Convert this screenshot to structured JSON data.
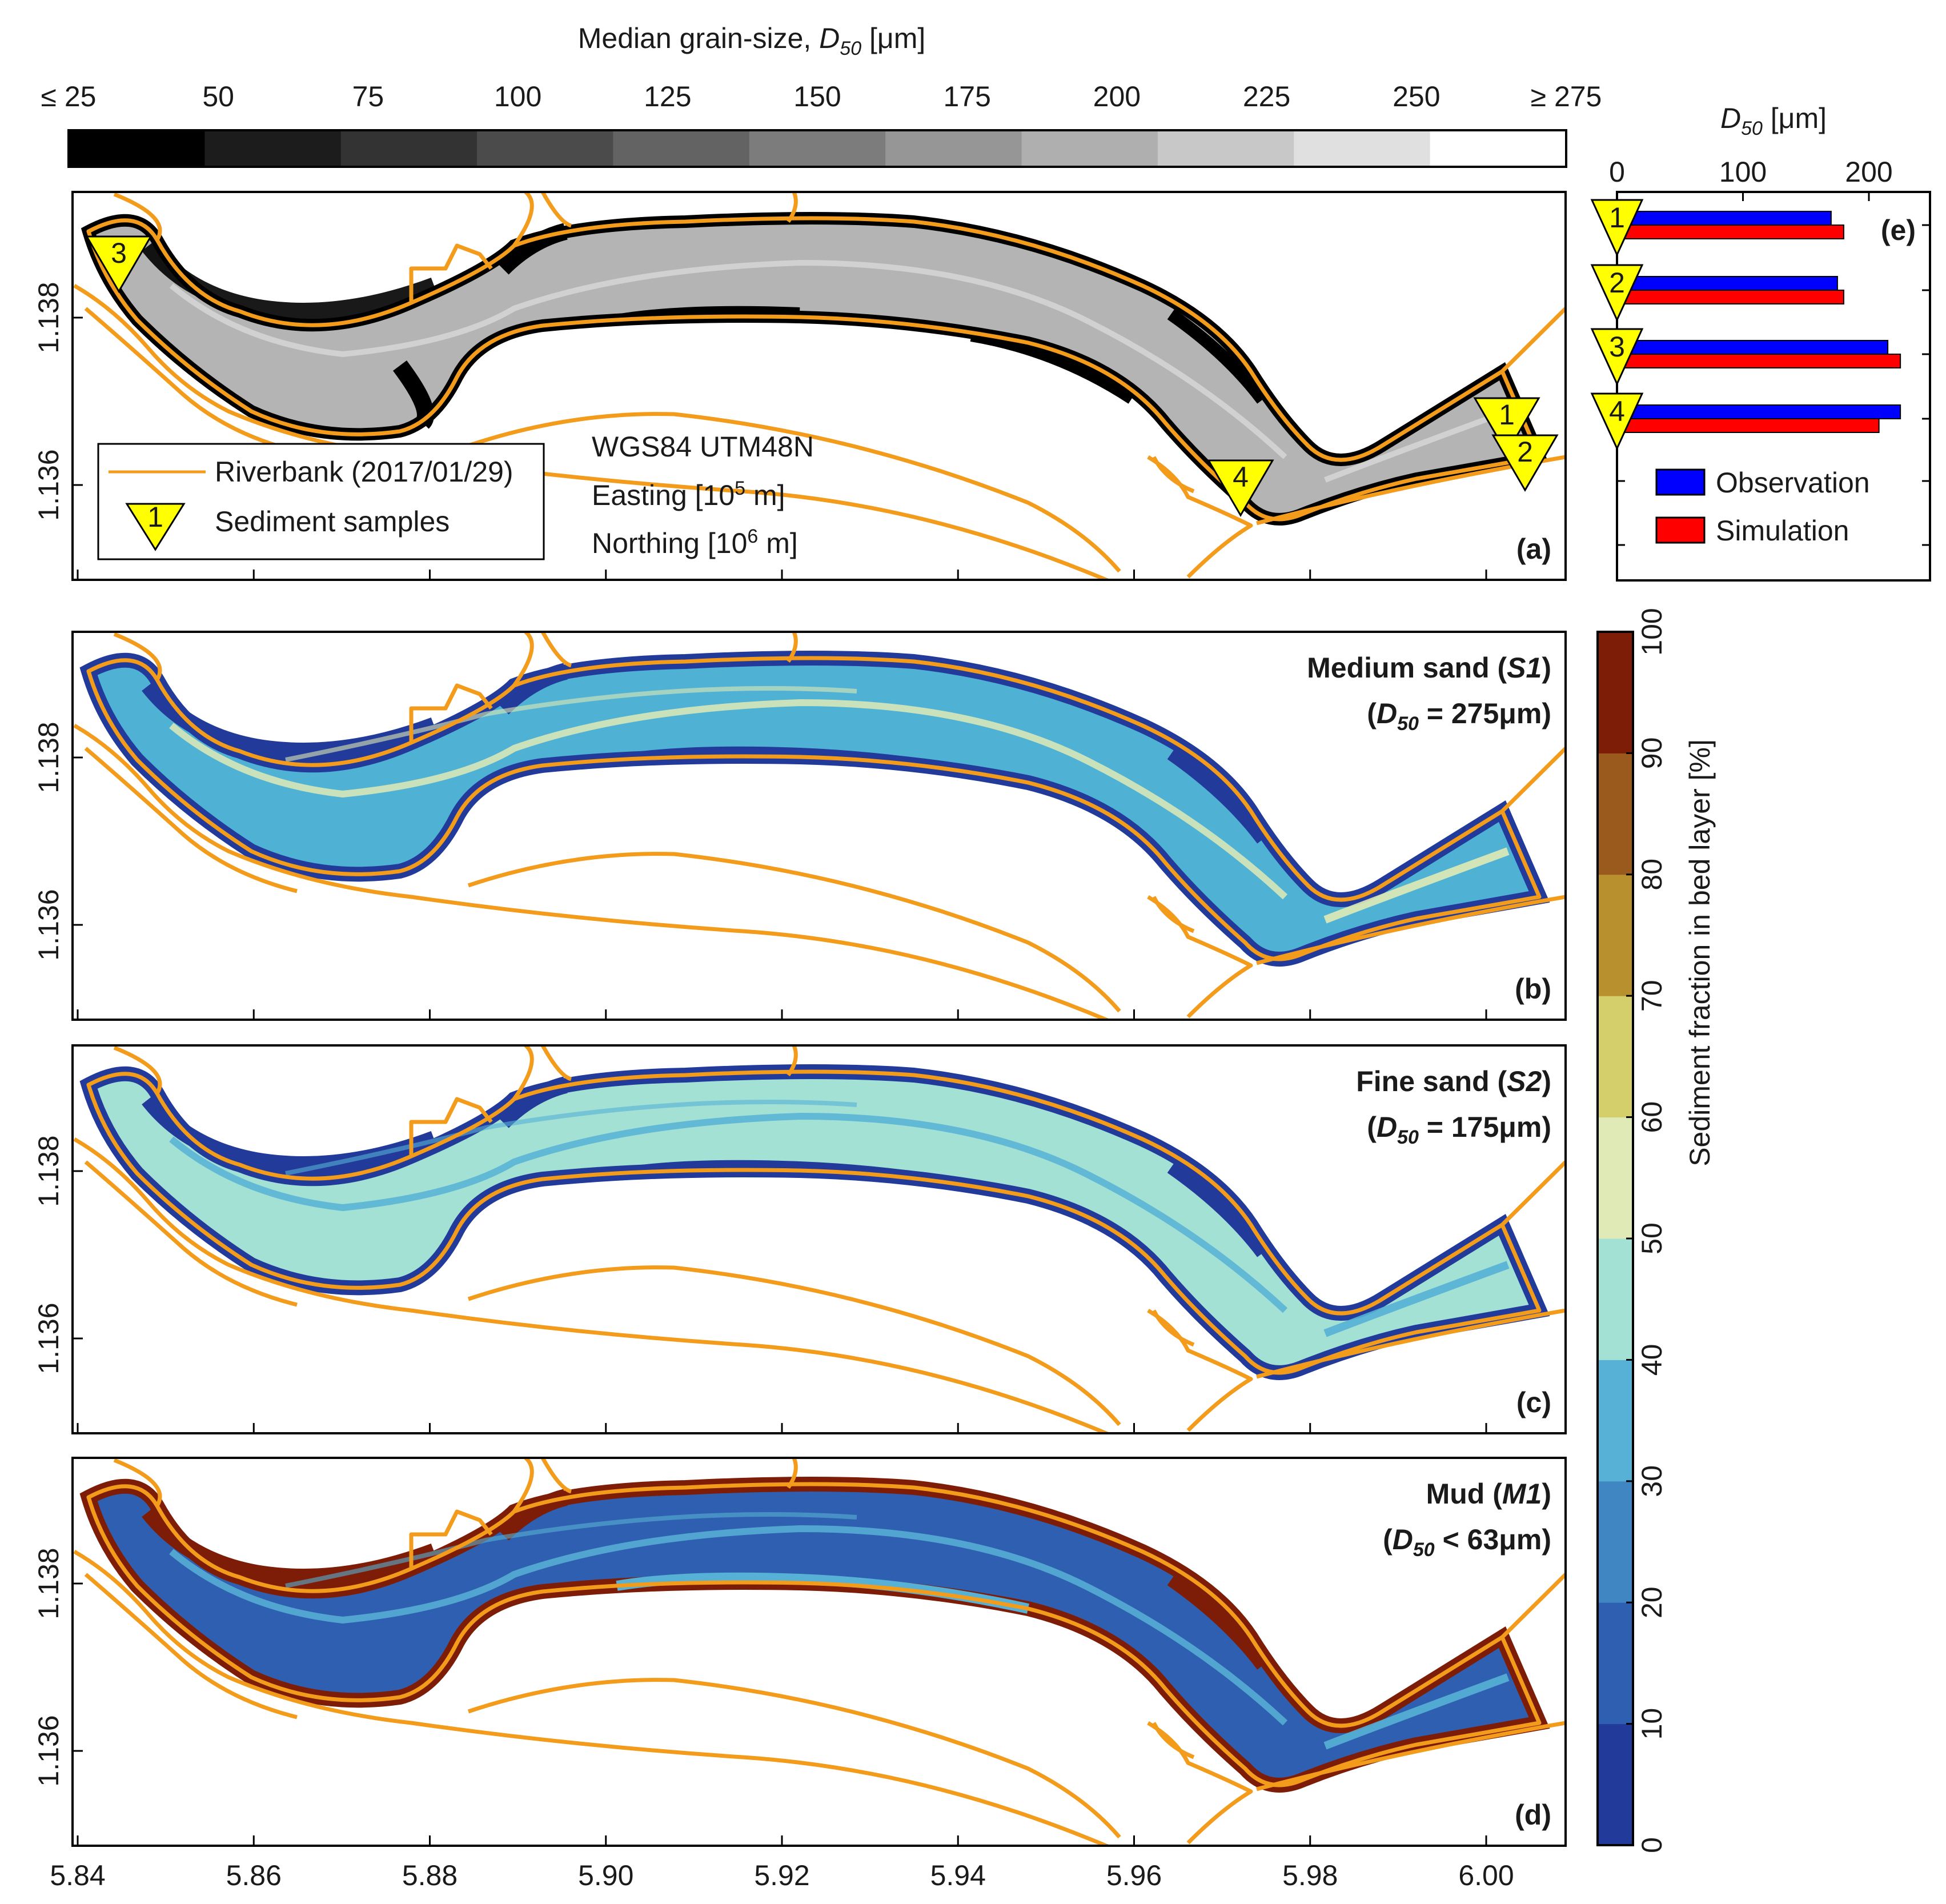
{
  "colorbar_top": {
    "title": "Median grain-size, D50 [μm]",
    "title_main": "Median grain-size, ",
    "title_sym": "D",
    "title_sub": "50",
    "title_unit": " [μm]",
    "tick_labels": [
      "≤ 25",
      "50",
      "75",
      "100",
      "125",
      "150",
      "175",
      "200",
      "225",
      "250",
      "≥ 275"
    ],
    "colors": [
      "#000000",
      "#1c1c1c",
      "#333333",
      "#4b4b4b",
      "#636363",
      "#7c7c7c",
      "#969696",
      "#afafaf",
      "#c8c8c8",
      "#e0e0e0",
      "#ffffff"
    ]
  },
  "colorbar_right": {
    "label": "Sediment fraction in bed layer [%]",
    "tick_labels": [
      "0",
      "10",
      "20",
      "30",
      "40",
      "50",
      "60",
      "70",
      "80",
      "90",
      "100"
    ],
    "colors": [
      "#223a9a",
      "#2f5fb0",
      "#3f86c3",
      "#57b1d6",
      "#a3e1d5",
      "#dfeab6",
      "#d4cf6a",
      "#b8902e",
      "#9a5a1e",
      "#7d1c07"
    ]
  },
  "axes": {
    "x_ticks": [
      "5.84",
      "5.86",
      "5.88",
      "5.90",
      "5.92",
      "5.94",
      "5.96",
      "5.98",
      "6.00"
    ],
    "y_ticks": [
      "1.138",
      "1.136"
    ]
  },
  "panels": {
    "a": {
      "tag": "(a)",
      "legend": {
        "riverbank": "Riverbank (2017/01/29)",
        "samples": "Sediment samples",
        "marker_label": "1"
      },
      "crs": {
        "line1": "WGS84 UTM48N",
        "line2_main": "Easting [10",
        "line2_exp": "5",
        "line2_unit": " m]",
        "line3_main": "Northing [10",
        "line3_exp": "6",
        "line3_unit": " m]"
      },
      "markers": [
        "3",
        "4",
        "1",
        "2"
      ]
    },
    "b": {
      "tag": "(b)",
      "title": "Medium sand (S1)",
      "t_name": "Medium sand (",
      "t_code": "S1",
      "t_close": ")",
      "sub_open": "(",
      "sub_sym": "D",
      "sub_sub": "50",
      "sub_val": " = 275μm)"
    },
    "c": {
      "tag": "(c)",
      "title": "Fine sand (S2)",
      "t_name": "Fine sand (",
      "t_code": "S2",
      "t_close": ")",
      "sub_open": "(",
      "sub_sym": "D",
      "sub_sub": "50",
      "sub_val": " = 175μm)"
    },
    "d": {
      "tag": "(d)",
      "title": "Mud (M1)",
      "t_name": "Mud (",
      "t_code": "M1",
      "t_close": ")",
      "sub_open": "(",
      "sub_sym": "D",
      "sub_sub": "50",
      "sub_val": " < 63μm)"
    },
    "e": {
      "tag": "(e)",
      "xlabel_sym": "D",
      "xlabel_sub": "50",
      "xlabel_unit": " [μm]",
      "x_ticks": [
        "0",
        "100",
        "200"
      ]
    }
  },
  "colors": {
    "observation": "#0000ff",
    "simulation": "#ff0000",
    "riverbank": "#f39b1b",
    "marker": "#ffff00"
  },
  "chart_data": [
    {
      "type": "bar",
      "orientation": "horizontal",
      "panel": "e",
      "categories": [
        "1",
        "2",
        "3",
        "4"
      ],
      "series": [
        {
          "name": "Observation",
          "values": [
            170,
            175,
            215,
            225
          ]
        },
        {
          "name": "Simulation",
          "values": [
            180,
            180,
            225,
            208
          ]
        }
      ],
      "xlim": [
        0,
        250
      ],
      "xlabel": "D50 [μm]"
    }
  ]
}
